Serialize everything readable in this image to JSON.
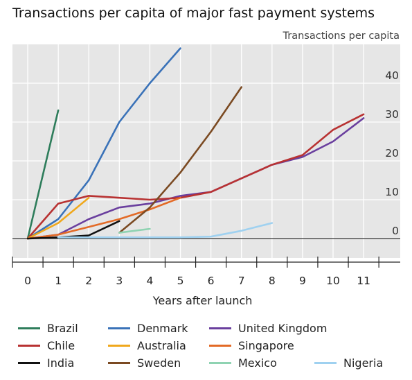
{
  "chart_data": {
    "type": "line",
    "title": "Transactions per capita of major fast payment systems",
    "ylabel": "Transactions per capita",
    "xlabel": "Years after launch",
    "xlim": [
      -0.5,
      12.2
    ],
    "ylim": [
      -5,
      50
    ],
    "x_ticks": [
      0,
      1,
      2,
      3,
      4,
      5,
      6,
      7,
      8,
      9,
      10,
      11
    ],
    "y_ticks": [
      0,
      10,
      20,
      30,
      40
    ],
    "grid": true,
    "background": "#e6e6e6",
    "y_axis_position": "right",
    "legend_position": "bottom",
    "series": [
      {
        "name": "Brazil",
        "color": "#2e7d5b",
        "points": [
          [
            0,
            0
          ],
          [
            1,
            33
          ]
        ]
      },
      {
        "name": "Denmark",
        "color": "#3a72b8",
        "points": [
          [
            0,
            0
          ],
          [
            1,
            5
          ],
          [
            2,
            15
          ],
          [
            3,
            30
          ],
          [
            4,
            40
          ],
          [
            5,
            49
          ]
        ]
      },
      {
        "name": "United Kingdom",
        "color": "#6a3f9e",
        "points": [
          [
            0,
            0
          ],
          [
            1,
            1
          ],
          [
            2,
            5
          ],
          [
            3,
            8
          ],
          [
            4,
            9
          ],
          [
            5,
            11
          ],
          [
            6,
            12
          ],
          [
            7,
            15.5
          ],
          [
            8,
            19
          ],
          [
            9,
            21
          ],
          [
            10,
            25
          ],
          [
            11,
            31
          ]
        ]
      },
      {
        "name": "Chile",
        "color": "#b83232",
        "points": [
          [
            0,
            0
          ],
          [
            1,
            9
          ],
          [
            2,
            11
          ],
          [
            3,
            10.5
          ],
          [
            4,
            10
          ],
          [
            5,
            10.5
          ],
          [
            6,
            12
          ],
          [
            7,
            15.5
          ],
          [
            8,
            19
          ],
          [
            9,
            21.5
          ],
          [
            10,
            28
          ],
          [
            11,
            32
          ]
        ]
      },
      {
        "name": "Australia",
        "color": "#f0a81c",
        "points": [
          [
            0,
            0
          ],
          [
            1,
            4
          ],
          [
            2,
            10.5
          ]
        ]
      },
      {
        "name": "Singapore",
        "color": "#e36a26",
        "points": [
          [
            0,
            0
          ],
          [
            1,
            1
          ],
          [
            2,
            3
          ],
          [
            3,
            5
          ],
          [
            4,
            7.5
          ],
          [
            5,
            10.5
          ]
        ]
      },
      {
        "name": "India",
        "color": "#111111",
        "points": [
          [
            0,
            0
          ],
          [
            1,
            0.3
          ],
          [
            2,
            0.8
          ],
          [
            3,
            4.5
          ]
        ]
      },
      {
        "name": "Sweden",
        "color": "#7b4a22",
        "points": [
          [
            3,
            1.5
          ],
          [
            4,
            8
          ],
          [
            5,
            17
          ],
          [
            6,
            27.5
          ],
          [
            7,
            39
          ]
        ]
      },
      {
        "name": "Mexico",
        "color": "#8fd3b2",
        "points": [
          [
            3,
            1.5
          ],
          [
            4,
            2.5
          ]
        ]
      },
      {
        "name": "Nigeria",
        "color": "#9fd1f0",
        "points": [
          [
            1,
            0.3
          ],
          [
            2,
            0.3
          ],
          [
            3,
            0.3
          ],
          [
            4,
            0.3
          ],
          [
            5,
            0.3
          ],
          [
            6,
            0.5
          ],
          [
            7,
            2
          ],
          [
            8,
            4
          ]
        ]
      }
    ]
  }
}
